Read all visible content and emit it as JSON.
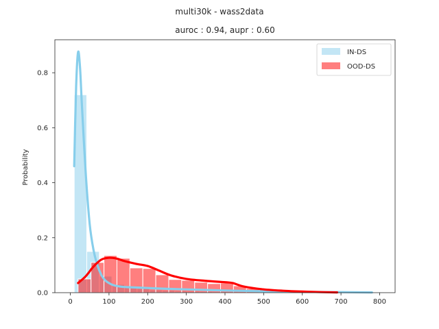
{
  "chart_data": {
    "type": "histogram",
    "suptitle": "multi30k - wass2data",
    "title": "auroc : 0.94, aupr : 0.60",
    "xlabel": "",
    "ylabel": "Probability",
    "xlim": [
      -40,
      840
    ],
    "ylim": [
      0,
      0.92
    ],
    "xticks": [
      0,
      100,
      200,
      300,
      400,
      500,
      600,
      700,
      800
    ],
    "yticks": [
      0.0,
      0.2,
      0.4,
      0.6,
      0.8
    ],
    "ytick_labels": [
      "0.0",
      "0.2",
      "0.4",
      "0.6",
      "0.8"
    ],
    "grid": false,
    "legend_position": "top-right",
    "series": [
      {
        "name": "IN-DS",
        "color": "#87ceeb",
        "bin_width": 32.5,
        "bins": [
          {
            "x0": 10,
            "value": 0.72
          },
          {
            "x0": 42.5,
            "value": 0.15
          },
          {
            "x0": 75,
            "value": 0.06
          },
          {
            "x0": 107.5,
            "value": 0.03
          },
          {
            "x0": 140,
            "value": 0.02
          },
          {
            "x0": 172.5,
            "value": 0.015
          },
          {
            "x0": 205,
            "value": 0.01
          },
          {
            "x0": 237.5,
            "value": 0.008
          },
          {
            "x0": 270,
            "value": 0.006
          },
          {
            "x0": 302.5,
            "value": 0.005
          },
          {
            "x0": 335,
            "value": 0.004
          },
          {
            "x0": 367.5,
            "value": 0.003
          },
          {
            "x0": 400,
            "value": 0.003
          },
          {
            "x0": 432.5,
            "value": 0.002
          },
          {
            "x0": 465,
            "value": 0.002
          },
          {
            "x0": 497.5,
            "value": 0.002
          },
          {
            "x0": 530,
            "value": 0.001
          },
          {
            "x0": 562.5,
            "value": 0.001
          },
          {
            "x0": 595,
            "value": 0.001
          },
          {
            "x0": 627.5,
            "value": 0.001
          },
          {
            "x0": 660,
            "value": 0.001
          },
          {
            "x0": 692.5,
            "value": 0.001
          },
          {
            "x0": 725,
            "value": 0.001
          },
          {
            "x0": 757.5,
            "value": 0.001
          }
        ],
        "kde": {
          "x": [
            10,
            15,
            20,
            25,
            30,
            40,
            50,
            60,
            70,
            80,
            90,
            100,
            110,
            130,
            150,
            200,
            250,
            300,
            400,
            500,
            600,
            700,
            780
          ],
          "y": [
            0.46,
            0.75,
            0.875,
            0.82,
            0.68,
            0.43,
            0.25,
            0.155,
            0.1,
            0.065,
            0.045,
            0.035,
            0.028,
            0.022,
            0.02,
            0.017,
            0.014,
            0.012,
            0.008,
            0.005,
            0.003,
            0.002,
            0.001
          ]
        }
      },
      {
        "name": "OOD-DS",
        "color": "#ff0000",
        "bin_width": 33.5,
        "bins": [
          {
            "x0": 20,
            "value": 0.05
          },
          {
            "x0": 53.5,
            "value": 0.11
          },
          {
            "x0": 87,
            "value": 0.135
          },
          {
            "x0": 120.5,
            "value": 0.125
          },
          {
            "x0": 154,
            "value": 0.09
          },
          {
            "x0": 187.5,
            "value": 0.088
          },
          {
            "x0": 221,
            "value": 0.065
          },
          {
            "x0": 254.5,
            "value": 0.048
          },
          {
            "x0": 288,
            "value": 0.045
          },
          {
            "x0": 321.5,
            "value": 0.038
          },
          {
            "x0": 355,
            "value": 0.033
          },
          {
            "x0": 388.5,
            "value": 0.035
          },
          {
            "x0": 422,
            "value": 0.025
          },
          {
            "x0": 455.5,
            "value": 0.015
          },
          {
            "x0": 489,
            "value": 0.012
          },
          {
            "x0": 522.5,
            "value": 0.008
          },
          {
            "x0": 556,
            "value": 0.006
          },
          {
            "x0": 589.5,
            "value": 0.005
          },
          {
            "x0": 623,
            "value": 0.003
          },
          {
            "x0": 656.5,
            "value": 0.003
          }
        ],
        "kde": {
          "x": [
            20,
            40,
            60,
            80,
            100,
            120,
            140,
            170,
            200,
            230,
            260,
            300,
            350,
            400,
            420,
            450,
            500,
            550,
            600,
            650,
            690
          ],
          "y": [
            0.035,
            0.06,
            0.095,
            0.12,
            0.127,
            0.124,
            0.115,
            0.105,
            0.097,
            0.08,
            0.063,
            0.05,
            0.043,
            0.038,
            0.035,
            0.022,
            0.012,
            0.007,
            0.004,
            0.002,
            0.001
          ]
        }
      }
    ]
  }
}
